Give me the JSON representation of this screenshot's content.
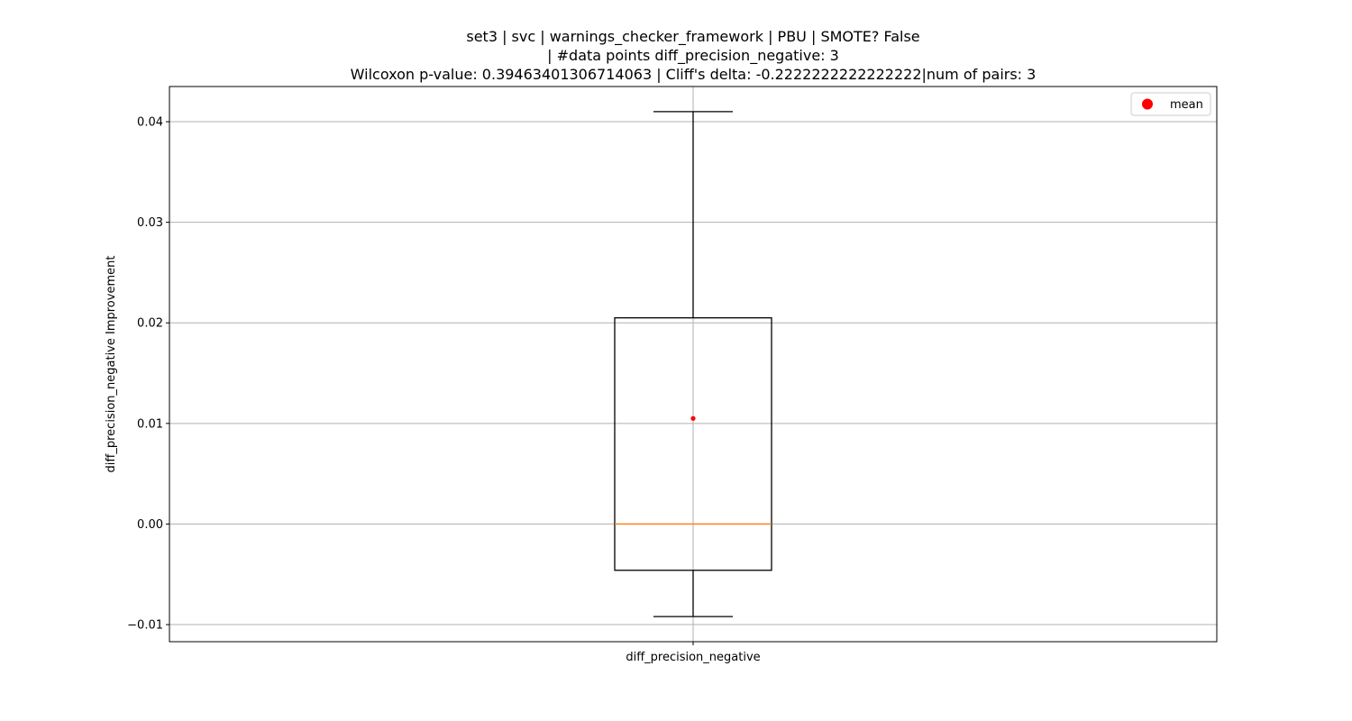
{
  "chart_data": {
    "type": "box",
    "title_lines": [
      "set3 | svc | warnings_checker_framework | PBU | SMOTE? False",
      "| #data points diff_precision_negative: 3",
      "Wilcoxon p-value: 0.39463401306714063 | Cliff's delta: -0.2222222222222222|num of pairs: 3"
    ],
    "xlabel": "",
    "ylabel": "diff_precision_negative Improvement",
    "categories": [
      "diff_precision_negative"
    ],
    "ylim": [
      -0.0117,
      0.0435
    ],
    "yticks": [
      -0.01,
      0.0,
      0.01,
      0.02,
      0.03,
      0.04
    ],
    "ytick_labels": [
      "−0.01",
      "0.00",
      "0.01",
      "0.02",
      "0.03",
      "0.04"
    ],
    "grid": true,
    "boxes": [
      {
        "name": "diff_precision_negative",
        "whisker_low": -0.0092,
        "q1": -0.0046,
        "median": 0.0,
        "q3": 0.0205,
        "whisker_high": 0.041,
        "mean": 0.0105
      }
    ],
    "legend": {
      "position": "top-right",
      "entries": [
        {
          "label": "mean",
          "marker": "circle",
          "color": "#ff0000"
        }
      ]
    },
    "colors": {
      "box": "#000000",
      "median": "#ff7f0e",
      "mean": "#ff0000",
      "grid": "#b0b0b0"
    }
  }
}
